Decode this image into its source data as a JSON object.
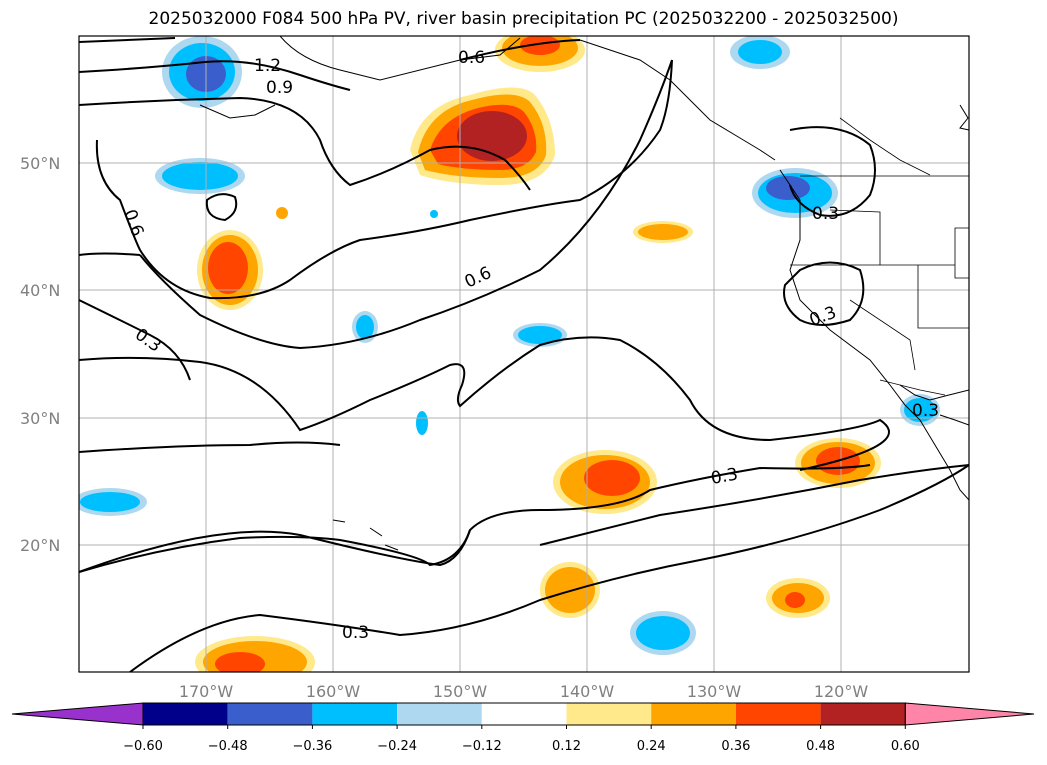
{
  "title": "2025032000 F084 500 hPa PV, river basin precipitation PC (2025032200 - 2025032500)",
  "lat_ticks": [
    "50°N",
    "40°N",
    "30°N",
    "20°N"
  ],
  "lon_ticks": [
    "170°W",
    "160°W",
    "150°W",
    "140°W",
    "130°W",
    "120°W"
  ],
  "contour_labels": [
    "1.2",
    "0.9",
    "0.6",
    "0.6",
    "0.6",
    "0.3",
    "0.3",
    "0.3",
    "0.3",
    "0.3",
    "0.3"
  ],
  "colorbar": {
    "ticks": [
      "−0.60",
      "−0.48",
      "−0.36",
      "−0.24",
      "−0.12",
      "0.12",
      "0.24",
      "0.36",
      "0.48",
      "0.60"
    ],
    "colors": [
      "#9932cc",
      "#00008b",
      "#3a5fcd",
      "#00bfff",
      "#add8f0",
      "#ffffff",
      "#ffe98a",
      "#ffa500",
      "#ff4500",
      "#b22222",
      "#ff85a8"
    ]
  },
  "colors": {
    "neg_light": "#add8f0",
    "neg_mid": "#00bfff",
    "neg_strong": "#3a5fcd",
    "pos_light": "#ffe98a",
    "pos_mid": "#ffa500",
    "pos_strong": "#ff4500",
    "pos_max": "#b22222",
    "contour": "#000000",
    "grid": "#b0b0b0"
  }
}
